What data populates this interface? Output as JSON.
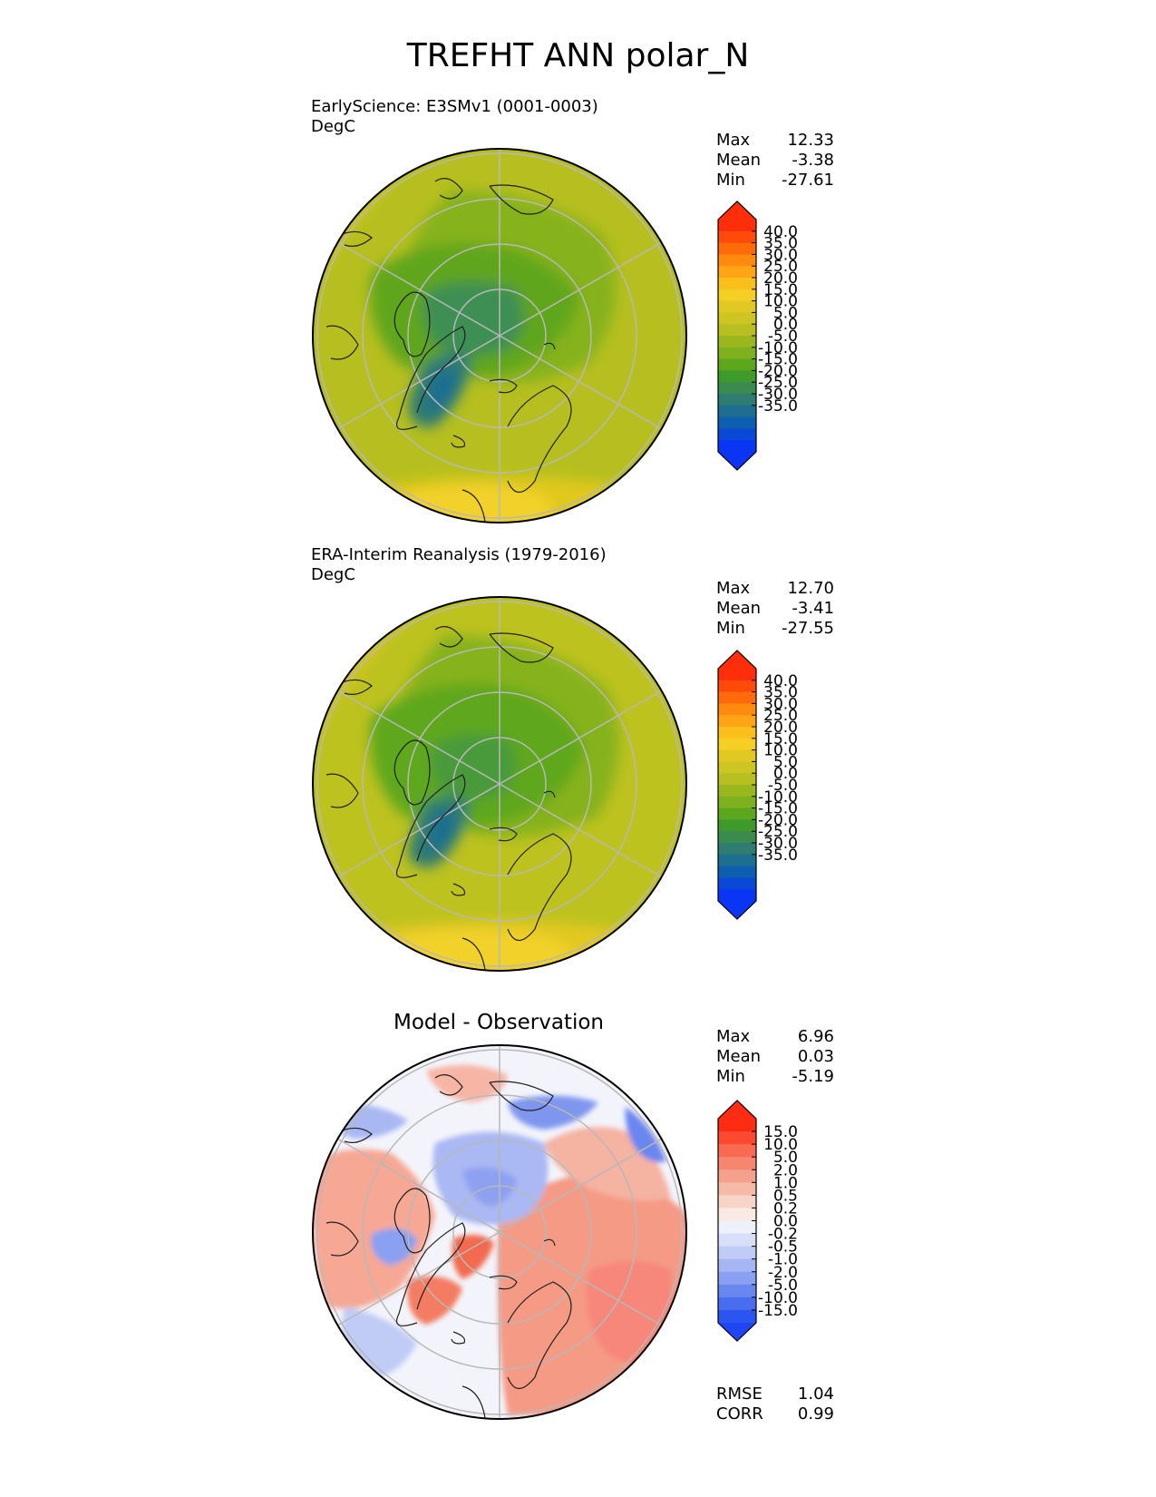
{
  "title": "TREFHT ANN polar_N",
  "colors": {
    "ocean_green": "#a9bf1e",
    "land_outline": "#202020",
    "grid": "#b8b8b8"
  },
  "panels": [
    {
      "key": "test",
      "label": "EarlyScience: E3SMv1 (0001-0003)",
      "units": "DegC",
      "stats": {
        "max_label": "Max",
        "max": "12.33",
        "mean_label": "Mean",
        "mean": "-3.38",
        "min_label": "Min",
        "min": "-27.61"
      },
      "colorbar": {
        "ticks": [
          "40.0",
          "35.0",
          "30.0",
          "25.0",
          "20.0",
          "15.0",
          "10.0",
          "5.0",
          "0.0",
          "-5.0",
          "-10.0",
          "-15.0",
          "-20.0",
          "-25.0",
          "-30.0",
          "-35.0"
        ],
        "colors": [
          "#ff2e0a",
          "#ff4a0a",
          "#ff6a0a",
          "#ff8a0e",
          "#ffa414",
          "#fbbf1c",
          "#f5cf24",
          "#e2c823",
          "#cdc522",
          "#b8bf20",
          "#9ab81e",
          "#7fb01d",
          "#5da71f",
          "#3f9a2c",
          "#3b8a4e",
          "#2f7c72",
          "#1e6e92",
          "#0f5fb0",
          "#0a48d6",
          "#0a35f5"
        ],
        "top_arrow": "#ff2e0a",
        "bottom_arrow": "#0a35f5"
      }
    },
    {
      "key": "ref",
      "label": "ERA-Interim Reanalysis (1979-2016)",
      "units": "DegC",
      "stats": {
        "max_label": "Max",
        "max": "12.70",
        "mean_label": "Mean",
        "mean": "-3.41",
        "min_label": "Min",
        "min": "-27.55"
      },
      "colorbar": {
        "ticks": [
          "40.0",
          "35.0",
          "30.0",
          "25.0",
          "20.0",
          "15.0",
          "10.0",
          "5.0",
          "0.0",
          "-5.0",
          "-10.0",
          "-15.0",
          "-20.0",
          "-25.0",
          "-30.0",
          "-35.0"
        ],
        "colors": [
          "#ff2e0a",
          "#ff4a0a",
          "#ff6a0a",
          "#ff8a0e",
          "#ffa414",
          "#fbbf1c",
          "#f5cf24",
          "#e2c823",
          "#cdc522",
          "#b8bf20",
          "#9ab81e",
          "#7fb01d",
          "#5da71f",
          "#3f9a2c",
          "#3b8a4e",
          "#2f7c72",
          "#1e6e92",
          "#0f5fb0",
          "#0a48d6",
          "#0a35f5"
        ],
        "top_arrow": "#ff2e0a",
        "bottom_arrow": "#0a35f5"
      }
    },
    {
      "key": "diff",
      "title": "Model - Observation",
      "stats": {
        "max_label": "Max",
        "max": "6.96",
        "mean_label": "Mean",
        "mean": "0.03",
        "min_label": "Min",
        "min": "-5.19"
      },
      "metrics": {
        "rmse_label": "RMSE",
        "rmse": "1.04",
        "corr_label": "CORR",
        "corr": "0.99"
      },
      "colorbar": {
        "ticks": [
          "15.0",
          "10.0",
          "5.0",
          "2.0",
          "1.0",
          "0.5",
          "0.2",
          "0.0",
          "-0.2",
          "-0.5",
          "-1.0",
          "-2.0",
          "-5.0",
          "-10.0",
          "-15.0"
        ],
        "colors": [
          "#ff2c14",
          "#fb4a30",
          "#f86a52",
          "#f7866e",
          "#f5a08c",
          "#f6baa8",
          "#f8d4c8",
          "#fbe9e4",
          "#eef0fa",
          "#d8dff8",
          "#c0ccf6",
          "#a6b6f4",
          "#8aa0f2",
          "#6a86ef",
          "#4a6cee",
          "#2b54f0"
        ],
        "top_arrow": "#ff2c14",
        "bottom_arrow": "#1e46f5"
      }
    }
  ]
}
